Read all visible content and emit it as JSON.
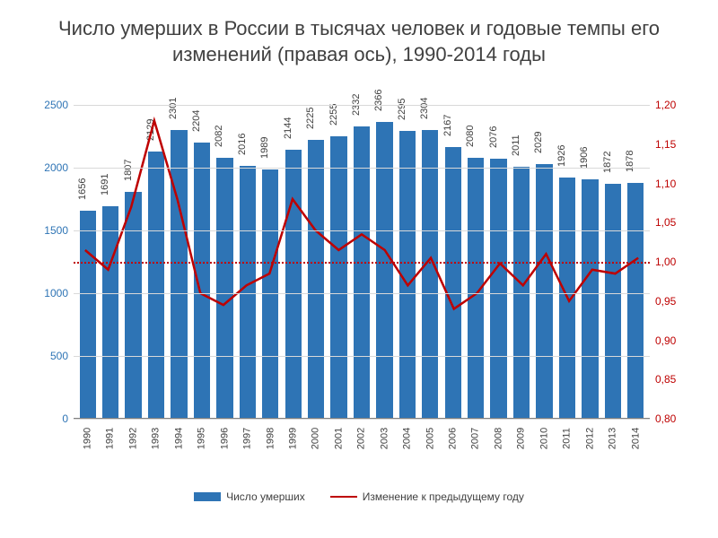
{
  "title": "Число умерших в России в тысячах человек и годовые темпы его изменений (правая ось), 1990-2014 годы",
  "chart": {
    "type": "bar+line",
    "background_color": "#ffffff",
    "grid_color": "#d9d9d9",
    "bar_color": "#2e74b5",
    "line_color": "#be0000",
    "refline_color": "#be0000",
    "title_fontsize": 22,
    "axis_fontsize": 12,
    "bar_width": 0.72,
    "line_width": 2.5,
    "y_left": {
      "min": 0,
      "max": 2500,
      "ticks": [
        0,
        500,
        1000,
        1500,
        2000,
        2500
      ],
      "color": "#2e74b5"
    },
    "y_right": {
      "min": 0.8,
      "max": 1.2,
      "ticks": [
        "0,80",
        "0,85",
        "0,90",
        "0,95",
        "1,00",
        "1,05",
        "1,10",
        "1,15",
        "1,20"
      ],
      "tick_vals": [
        0.8,
        0.85,
        0.9,
        0.95,
        1.0,
        1.05,
        1.1,
        1.15,
        1.2
      ],
      "color": "#be0000"
    },
    "reference_line": 1.0,
    "years": [
      "1990",
      "1991",
      "1992",
      "1993",
      "1994",
      "1995",
      "1996",
      "1997",
      "1998",
      "1999",
      "2000",
      "2001",
      "2002",
      "2003",
      "2004",
      "2005",
      "2006",
      "2007",
      "2008",
      "2009",
      "2010",
      "2011",
      "2012",
      "2013",
      "2014"
    ],
    "bar_values": [
      1656,
      1691,
      1807,
      2129,
      2301,
      2204,
      2082,
      2016,
      1989,
      2144,
      2225,
      2255,
      2332,
      2366,
      2295,
      2304,
      2167,
      2080,
      2076,
      2011,
      2029,
      1926,
      1906,
      1872,
      1878
    ],
    "line_values": [
      1.015,
      0.99,
      1.07,
      1.18,
      1.08,
      0.96,
      0.945,
      0.97,
      0.985,
      1.08,
      1.04,
      1.015,
      1.035,
      1.015,
      0.97,
      1.005,
      0.94,
      0.96,
      0.998,
      0.97,
      1.01,
      0.95,
      0.99,
      0.985,
      1.005
    ]
  },
  "legend": {
    "bars": "Число умерших",
    "line": "Изменение к предыдущему году"
  }
}
